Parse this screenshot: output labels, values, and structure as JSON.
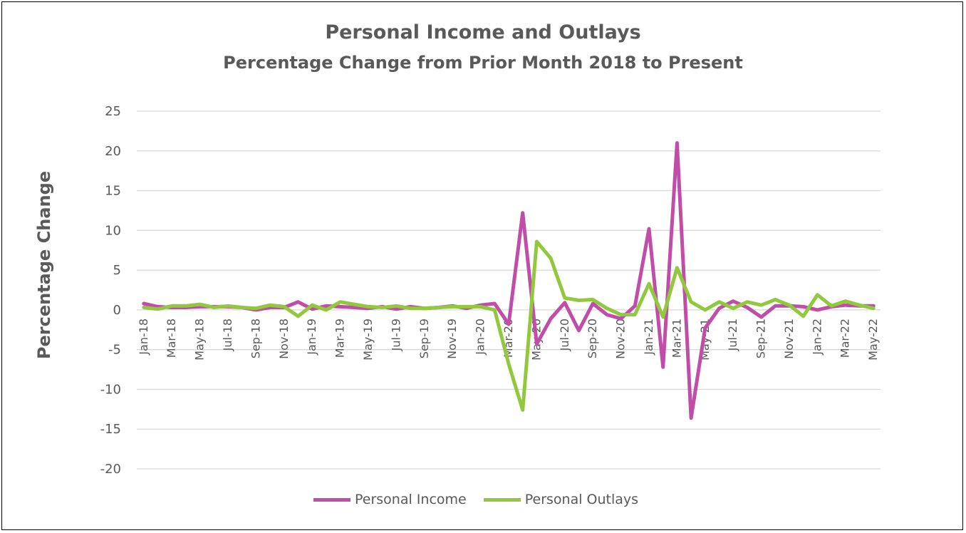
{
  "chart_data": {
    "type": "line",
    "title": "Personal Income and Outlays",
    "subtitle": "Percentage Change from Prior Month 2018 to Present",
    "xlabel": "",
    "ylabel": "Percentage Change",
    "ylim": [
      -20,
      25
    ],
    "yticks": [
      25,
      20,
      15,
      10,
      5,
      0,
      -5,
      -10,
      -15,
      -20
    ],
    "grid": true,
    "legend_position": "bottom",
    "x_label_every": 2,
    "categories": [
      "Jan-18",
      "Feb-18",
      "Mar-18",
      "Apr-18",
      "May-18",
      "Jun-18",
      "Jul-18",
      "Aug-18",
      "Sep-18",
      "Oct-18",
      "Nov-18",
      "Dec-18",
      "Jan-19",
      "Feb-19",
      "Mar-19",
      "Apr-19",
      "May-19",
      "Jun-19",
      "Jul-19",
      "Aug-19",
      "Sep-19",
      "Oct-19",
      "Nov-19",
      "Dec-19",
      "Jan-20",
      "Feb-20",
      "Mar-20",
      "Apr-20",
      "May-20",
      "Jun-20",
      "Jul-20",
      "Aug-20",
      "Sep-20",
      "Oct-20",
      "Nov-20",
      "Dec-20",
      "Jan-21",
      "Feb-21",
      "Mar-21",
      "Apr-21",
      "May-21",
      "Jun-21",
      "Jul-21",
      "Aug-21",
      "Sep-21",
      "Oct-21",
      "Nov-21",
      "Dec-21",
      "Jan-22",
      "Feb-22",
      "Mar-22",
      "Apr-22",
      "May-22"
    ],
    "series": [
      {
        "name": "Personal Income",
        "color": "#c04da8",
        "values": [
          0.8,
          0.4,
          0.3,
          0.3,
          0.4,
          0.4,
          0.4,
          0.3,
          0.0,
          0.3,
          0.3,
          1.0,
          0.1,
          0.5,
          0.4,
          0.3,
          0.2,
          0.4,
          0.1,
          0.4,
          0.2,
          0.3,
          0.5,
          0.2,
          0.6,
          0.8,
          -1.8,
          12.2,
          -4.3,
          -1.1,
          0.9,
          -2.6,
          0.8,
          -0.6,
          -1.1,
          0.5,
          10.2,
          -7.2,
          21.0,
          -13.6,
          -2.3,
          0.2,
          1.1,
          0.3,
          -0.9,
          0.5,
          0.5,
          0.4,
          0.0,
          0.4,
          0.6,
          0.5,
          0.5
        ]
      },
      {
        "name": "Personal Outlays",
        "color": "#92c83e",
        "values": [
          0.3,
          0.1,
          0.5,
          0.5,
          0.7,
          0.3,
          0.5,
          0.3,
          0.2,
          0.6,
          0.4,
          -0.8,
          0.6,
          0.0,
          1.0,
          0.7,
          0.4,
          0.3,
          0.5,
          0.2,
          0.2,
          0.3,
          0.4,
          0.4,
          0.4,
          0.0,
          -6.8,
          -12.6,
          8.6,
          6.5,
          1.5,
          1.2,
          1.3,
          0.2,
          -0.6,
          -0.6,
          3.3,
          -0.9,
          5.3,
          1.0,
          0.0,
          1.0,
          0.2,
          1.0,
          0.6,
          1.3,
          0.6,
          -0.8,
          1.9,
          0.5,
          1.1,
          0.6,
          0.2
        ]
      }
    ]
  }
}
